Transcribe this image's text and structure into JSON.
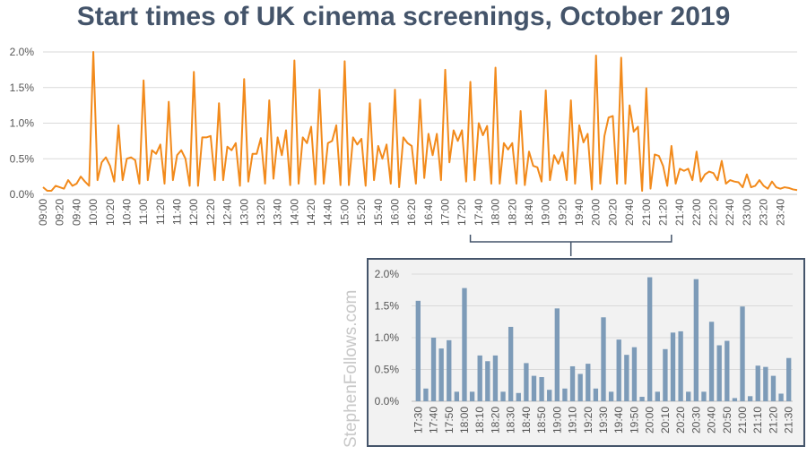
{
  "title": "Start times of UK cinema screenings, October 2019",
  "watermark": "StephenFollows.com",
  "colors": {
    "line": "#f28a1b",
    "bar": "#7d9bb8",
    "title": "#44546a",
    "inset_bg": "#f2f2f2",
    "inset_border": "#44546a",
    "grid": "#d9d9d9"
  },
  "chart_data": [
    {
      "type": "line",
      "title": "Start times of UK cinema screenings, October 2019",
      "xlabel": "",
      "ylabel": "",
      "ylim": [
        0,
        2.0
      ],
      "y_ticks": [
        "0.0%",
        "0.5%",
        "1.0%",
        "1.5%",
        "2.0%"
      ],
      "x_tick_labels": [
        "09:00",
        "09:20",
        "09:40",
        "10:00",
        "10:20",
        "10:40",
        "11:00",
        "11:20",
        "11:40",
        "12:00",
        "12:20",
        "12:40",
        "13:00",
        "13:20",
        "13:40",
        "14:00",
        "14:20",
        "14:40",
        "15:00",
        "15:20",
        "15:40",
        "16:00",
        "16:20",
        "16:40",
        "17:00",
        "17:20",
        "17:40",
        "18:00",
        "18:20",
        "18:40",
        "19:00",
        "19:20",
        "19:40",
        "20:00",
        "20:20",
        "20:40",
        "21:00",
        "21:20",
        "21:40",
        "22:00",
        "22:20",
        "22:40",
        "23:00",
        "23:20",
        "23:40"
      ],
      "x_interval_minutes": 5,
      "grid": true,
      "values": [
        0.1,
        0.05,
        0.05,
        0.12,
        0.1,
        0.08,
        0.2,
        0.12,
        0.15,
        0.25,
        0.18,
        0.12,
        2.0,
        0.2,
        0.45,
        0.52,
        0.4,
        0.18,
        0.97,
        0.2,
        0.5,
        0.52,
        0.48,
        0.15,
        1.6,
        0.2,
        0.62,
        0.57,
        0.7,
        0.15,
        1.3,
        0.2,
        0.55,
        0.62,
        0.5,
        0.12,
        1.72,
        0.12,
        0.8,
        0.8,
        0.82,
        0.2,
        1.28,
        0.2,
        0.67,
        0.62,
        0.72,
        0.12,
        1.62,
        0.18,
        0.57,
        0.57,
        0.79,
        0.15,
        1.32,
        0.22,
        0.8,
        0.55,
        0.9,
        0.13,
        1.88,
        0.15,
        0.8,
        0.72,
        0.95,
        0.14,
        1.47,
        0.15,
        0.72,
        0.75,
        0.97,
        0.13,
        1.87,
        0.13,
        0.8,
        0.7,
        0.78,
        0.12,
        1.28,
        0.2,
        0.68,
        0.5,
        0.7,
        0.15,
        1.47,
        0.1,
        0.8,
        0.72,
        0.68,
        0.15,
        1.33,
        0.23,
        0.85,
        0.55,
        0.85,
        0.2,
        1.75,
        0.45,
        0.9,
        0.75,
        0.9,
        0.18,
        1.58,
        0.2,
        1.0,
        0.83,
        0.96,
        0.15,
        1.78,
        0.15,
        0.72,
        0.63,
        0.72,
        0.15,
        1.17,
        0.13,
        0.6,
        0.4,
        0.38,
        0.18,
        1.46,
        0.2,
        0.55,
        0.43,
        0.59,
        0.2,
        1.32,
        0.15,
        0.97,
        0.73,
        0.85,
        0.07,
        1.95,
        0.15,
        0.82,
        1.08,
        1.1,
        0.15,
        1.92,
        0.15,
        1.25,
        0.88,
        0.95,
        0.05,
        1.49,
        0.08,
        0.56,
        0.54,
        0.4,
        0.12,
        0.68,
        0.15,
        0.36,
        0.33,
        0.36,
        0.2,
        0.6,
        0.18,
        0.28,
        0.32,
        0.3,
        0.2,
        0.47,
        0.15,
        0.2,
        0.18,
        0.17,
        0.1,
        0.28,
        0.1,
        0.12,
        0.2,
        0.12,
        0.08,
        0.18,
        0.1,
        0.08,
        0.1,
        0.09,
        0.07,
        0.06
      ]
    },
    {
      "type": "bar",
      "ylim": [
        0,
        2.0
      ],
      "y_ticks": [
        "0.0%",
        "0.5%",
        "1.0%",
        "1.5%",
        "2.0%"
      ],
      "x_tick_labels": [
        "17:30",
        "17:40",
        "17:50",
        "18:00",
        "18:10",
        "18:20",
        "18:30",
        "18:40",
        "18:50",
        "19:00",
        "19:10",
        "19:20",
        "19:30",
        "19:40",
        "19:50",
        "20:00",
        "20:10",
        "20:20",
        "20:30",
        "20:40",
        "20:50",
        "21:00",
        "21:10",
        "21:20",
        "21:30"
      ],
      "x_interval_minutes": 5,
      "grid": true,
      "values": [
        1.58,
        0.2,
        1.0,
        0.83,
        0.96,
        0.15,
        1.78,
        0.15,
        0.72,
        0.63,
        0.72,
        0.15,
        1.17,
        0.13,
        0.6,
        0.4,
        0.38,
        0.18,
        1.46,
        0.2,
        0.55,
        0.43,
        0.59,
        0.2,
        1.32,
        0.15,
        0.97,
        0.73,
        0.85,
        0.07,
        1.95,
        0.15,
        0.82,
        1.08,
        1.1,
        0.15,
        1.92,
        0.15,
        1.25,
        0.88,
        0.95,
        0.05,
        1.49,
        0.08,
        0.56,
        0.54,
        0.4,
        0.12,
        0.68
      ]
    }
  ]
}
